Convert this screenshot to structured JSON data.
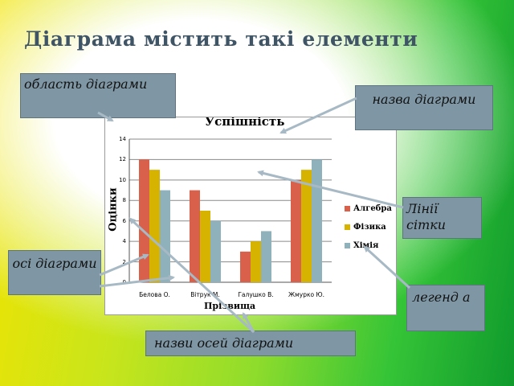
{
  "slide": {
    "title": "Діаграма містить такі елементи"
  },
  "callouts": {
    "chart_area": "область діаграми",
    "chart_title": "назва діаграми",
    "gridlines": "Лінії сітки",
    "axes": "осі діаграми",
    "legend": "легенд а",
    "axis_titles": "назви осей діаграми"
  },
  "colors": {
    "callout_bg": "#7f97a4",
    "arrow": "#a7b9c4",
    "title_text": "#3f5566"
  },
  "chart_data": {
    "type": "bar",
    "title": "Успішність",
    "xlabel": "Прізвища",
    "ylabel": "Оцінки",
    "categories": [
      "Белова О.",
      "Вітрук М.",
      "Галушко В.",
      "Жмурко Ю."
    ],
    "ylim": [
      0,
      14
    ],
    "yticks": [
      0,
      2,
      4,
      6,
      8,
      10,
      12,
      14
    ],
    "grid": true,
    "legend_position": "right",
    "series": [
      {
        "name": "Алгебра",
        "values": [
          12,
          9,
          3,
          10
        ],
        "color": "#d9604a"
      },
      {
        "name": "Фізика",
        "values": [
          11,
          7,
          4,
          11
        ],
        "color": "#d6b300"
      },
      {
        "name": "Хімія",
        "values": [
          9,
          6,
          5,
          12
        ],
        "color": "#8fb1bb"
      }
    ]
  }
}
